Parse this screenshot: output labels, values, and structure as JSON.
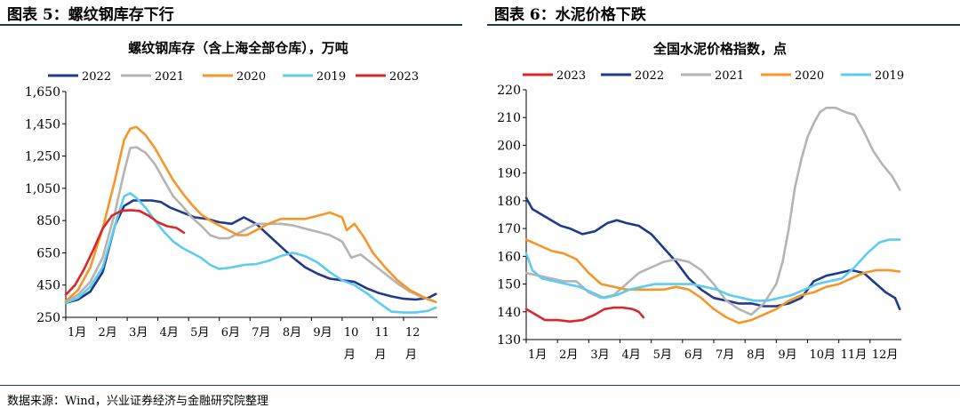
{
  "left": {
    "figure_title": "图表 5：螺纹钢库存下行"
  },
  "right": {
    "figure_title": "图表 6：水泥价格下跌"
  },
  "source": "数据来源：Wind，兴业证券经济与金融研究院整理",
  "chart_data": [
    {
      "type": "line",
      "title": "螺纹钢库存（含上海全部仓库），万吨",
      "xlabel": "",
      "ylabel": "",
      "ylim": [
        250,
        1650
      ],
      "y_ticks": [
        "250",
        "450",
        "650",
        "850",
        "1,050",
        "1,250",
        "1,450",
        "1,650"
      ],
      "x_ticks": [
        "1月",
        "2月",
        "3月",
        "4月",
        "5月",
        "6月",
        "7月",
        "8月",
        "9月",
        "10月",
        "11月",
        "12月"
      ],
      "xlim": [
        1,
        13.1
      ],
      "legend": "top",
      "series": [
        {
          "name": "2022",
          "color": "#1f3a8a",
          "x": [
            1,
            1.4,
            1.8,
            2.2,
            2.6,
            2.9,
            3.2,
            3.5,
            3.8,
            4.1,
            4.4,
            4.8,
            5.2,
            5.6,
            6,
            6.4,
            6.8,
            7.2,
            7.6,
            8,
            8.4,
            8.8,
            9.2,
            9.6,
            10,
            10.4,
            10.8,
            11.2,
            11.6,
            12,
            12.4,
            12.8,
            13.05
          ],
          "y": [
            340,
            360,
            410,
            530,
            820,
            940,
            975,
            975,
            975,
            965,
            930,
            900,
            870,
            860,
            840,
            830,
            870,
            830,
            760,
            690,
            620,
            560,
            520,
            490,
            480,
            470,
            430,
            400,
            380,
            365,
            360,
            370,
            395
          ]
        },
        {
          "name": "2021",
          "color": "#b4b4b4",
          "x": [
            1,
            1.4,
            1.8,
            2.2,
            2.6,
            2.9,
            3.1,
            3.3,
            3.6,
            3.9,
            4.2,
            4.5,
            4.8,
            5.1,
            5.4,
            5.7,
            6,
            6.3,
            6.6,
            6.9,
            7.2,
            7.6,
            8,
            8.4,
            8.8,
            9.2,
            9.6,
            10,
            10.3,
            10.6,
            11,
            11.4,
            11.8,
            12.2,
            12.6,
            13.05
          ],
          "y": [
            345,
            390,
            470,
            620,
            900,
            1150,
            1300,
            1305,
            1270,
            1200,
            1100,
            1000,
            940,
            870,
            820,
            760,
            740,
            740,
            770,
            800,
            830,
            830,
            830,
            820,
            800,
            780,
            760,
            720,
            620,
            640,
            580,
            520,
            460,
            410,
            375,
            345
          ]
        },
        {
          "name": "2020",
          "color": "#f5962a",
          "x": [
            1,
            1.4,
            1.8,
            2.2,
            2.6,
            2.9,
            3.1,
            3.3,
            3.6,
            3.9,
            4.2,
            4.5,
            4.8,
            5.1,
            5.4,
            5.7,
            6,
            6.3,
            6.6,
            6.9,
            7.2,
            7.6,
            8,
            8.4,
            8.8,
            9.2,
            9.6,
            10,
            10.15,
            10.4,
            10.7,
            11,
            11.4,
            11.8,
            12.2,
            12.6,
            13.05
          ],
          "y": [
            350,
            420,
            560,
            800,
            1100,
            1350,
            1420,
            1430,
            1380,
            1300,
            1200,
            1100,
            1020,
            950,
            890,
            850,
            820,
            790,
            760,
            760,
            790,
            830,
            860,
            860,
            860,
            880,
            900,
            870,
            790,
            830,
            750,
            650,
            560,
            480,
            420,
            380,
            345
          ]
        },
        {
          "name": "2019",
          "color": "#5ecbef",
          "x": [
            1,
            1.4,
            1.8,
            2.2,
            2.6,
            2.9,
            3.1,
            3.3,
            3.6,
            3.9,
            4.2,
            4.5,
            4.8,
            5.1,
            5.4,
            5.7,
            6,
            6.4,
            6.8,
            7.2,
            7.6,
            8,
            8.4,
            8.8,
            9.2,
            9.6,
            10,
            10.4,
            10.8,
            11.2,
            11.6,
            12,
            12.4,
            12.8,
            13.05
          ],
          "y": [
            340,
            370,
            440,
            560,
            820,
            1000,
            1020,
            990,
            930,
            850,
            780,
            720,
            680,
            650,
            620,
            575,
            550,
            560,
            575,
            580,
            600,
            630,
            650,
            630,
            590,
            530,
            480,
            450,
            400,
            340,
            285,
            280,
            280,
            290,
            310
          ]
        },
        {
          "name": "2023",
          "color": "#d9282b",
          "x": [
            1,
            1.3,
            1.6,
            1.9,
            2.2,
            2.5,
            2.8,
            3.1,
            3.4,
            3.7,
            4,
            4.3,
            4.6,
            4.85
          ],
          "y": [
            390,
            450,
            550,
            670,
            800,
            880,
            910,
            915,
            910,
            880,
            840,
            815,
            805,
            775
          ]
        }
      ]
    },
    {
      "type": "line",
      "title": "全国水泥价格指数，点",
      "xlabel": "",
      "ylabel": "",
      "ylim": [
        130,
        220
      ],
      "y_ticks": [
        "130",
        "140",
        "150",
        "160",
        "170",
        "180",
        "190",
        "200",
        "210",
        "220"
      ],
      "x_ticks": [
        "1月",
        "2月",
        "3月",
        "4月",
        "5月",
        "6月",
        "7月",
        "8月",
        "9月",
        "10月",
        "11月",
        "12月"
      ],
      "xlim": [
        1,
        13
      ],
      "legend": "top",
      "series": [
        {
          "name": "2023",
          "color": "#d9282b",
          "x": [
            1,
            1.3,
            1.6,
            2,
            2.4,
            2.8,
            3,
            3.2,
            3.5,
            3.8,
            4.1,
            4.4,
            4.6,
            4.75
          ],
          "y": [
            141,
            139,
            137,
            137,
            136.5,
            137,
            138,
            139,
            141,
            141.5,
            141.5,
            141,
            140,
            138
          ]
        },
        {
          "name": "2022",
          "color": "#1f3a8a",
          "x": [
            1,
            1.2,
            1.5,
            1.8,
            2.1,
            2.4,
            2.8,
            3.2,
            3.6,
            3.9,
            4.2,
            4.6,
            5,
            5.4,
            5.8,
            6.2,
            6.6,
            7,
            7.4,
            7.8,
            8.2,
            8.6,
            9,
            9.4,
            9.8,
            10.2,
            10.6,
            11,
            11.4,
            11.8,
            12.2,
            12.5,
            12.8,
            12.95
          ],
          "y": [
            181,
            177,
            175,
            173,
            171,
            170,
            168,
            169,
            172,
            173,
            172,
            171,
            168,
            163,
            158,
            152,
            148,
            145,
            144,
            143,
            143,
            142,
            142,
            143,
            145,
            151,
            153,
            154,
            155,
            154,
            150,
            147,
            145,
            141
          ]
        },
        {
          "name": "2021",
          "color": "#b4b4b4",
          "x": [
            1,
            1.4,
            1.8,
            2.2,
            2.6,
            3,
            3.4,
            3.8,
            4.2,
            4.6,
            5,
            5.4,
            5.8,
            6.2,
            6.6,
            7,
            7.4,
            7.8,
            8.2,
            8.6,
            9,
            9.2,
            9.4,
            9.6,
            9.8,
            10,
            10.2,
            10.4,
            10.6,
            10.9,
            11.2,
            11.5,
            11.8,
            12.1,
            12.4,
            12.7,
            12.95
          ],
          "y": [
            154,
            153,
            152,
            151,
            151,
            147,
            145,
            146,
            150,
            154,
            156,
            158,
            159,
            158,
            155,
            150,
            144,
            141,
            139,
            143,
            150,
            158,
            170,
            185,
            195,
            203,
            208,
            212,
            213.5,
            213.5,
            212,
            211,
            205,
            198,
            193,
            189,
            184
          ]
        },
        {
          "name": "2020",
          "color": "#f5962a",
          "x": [
            1,
            1.4,
            1.8,
            2.2,
            2.6,
            3,
            3.4,
            3.8,
            4.2,
            4.6,
            5,
            5.4,
            5.8,
            6.2,
            6.6,
            7,
            7.4,
            7.8,
            8.2,
            8.6,
            9,
            9.4,
            9.8,
            10.2,
            10.6,
            11,
            11.4,
            11.8,
            12.2,
            12.6,
            12.95
          ],
          "y": [
            166,
            164,
            162,
            161,
            159,
            154,
            150,
            149,
            148,
            148,
            148,
            148,
            149,
            148,
            145,
            141,
            138,
            136,
            137,
            139,
            141,
            144,
            146,
            147,
            149,
            150,
            152,
            154,
            155,
            155,
            154.5
          ]
        },
        {
          "name": "2019",
          "color": "#5ecbef",
          "x": [
            1,
            1.2,
            1.5,
            1.9,
            2.3,
            2.7,
            3.1,
            3.5,
            3.9,
            4.3,
            4.7,
            5.1,
            5.5,
            5.9,
            6.3,
            6.7,
            7.1,
            7.5,
            7.9,
            8.3,
            8.7,
            9.1,
            9.5,
            9.9,
            10.3,
            10.7,
            11.1,
            11.5,
            11.9,
            12.3,
            12.6,
            12.95
          ],
          "y": [
            161,
            155,
            152,
            151,
            150,
            149,
            147,
            145,
            146,
            148,
            149,
            150,
            150,
            150,
            150,
            149,
            148,
            146,
            145,
            144,
            144,
            145,
            146,
            148,
            150,
            151,
            152,
            156,
            161,
            165,
            166,
            166
          ]
        }
      ]
    }
  ]
}
